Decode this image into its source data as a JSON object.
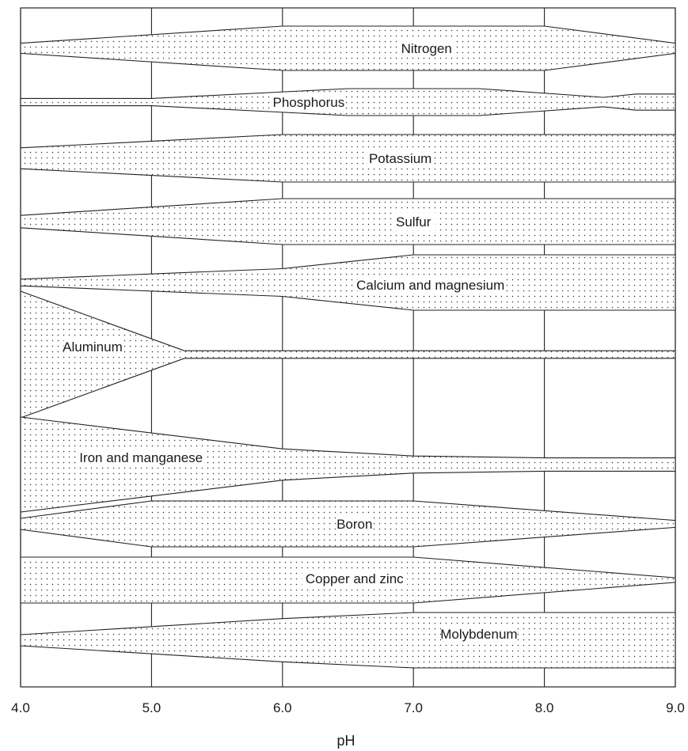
{
  "chart_data": {
    "type": "area",
    "xlabel": "pH",
    "xlim": [
      4.0,
      9.0
    ],
    "x_ticks": [
      "4.0",
      "5.0",
      "6.0",
      "7.0",
      "8.0",
      "9.0"
    ],
    "grid": true,
    "value_unit": "relative availability (band width, 0-1)",
    "series": [
      {
        "name": "Nitrogen",
        "label_x": 7.1,
        "points": [
          [
            4.0,
            0.23
          ],
          [
            6.0,
            1.0
          ],
          [
            8.0,
            1.0
          ],
          [
            9.0,
            0.23
          ]
        ]
      },
      {
        "name": "Phosphorus",
        "label_x": 6.2,
        "points": [
          [
            4.0,
            0.27
          ],
          [
            5.0,
            0.27
          ],
          [
            6.5,
            1.0
          ],
          [
            7.5,
            1.0
          ],
          [
            8.45,
            0.35
          ],
          [
            8.7,
            0.6
          ],
          [
            9.0,
            0.6
          ]
        ]
      },
      {
        "name": "Potassium",
        "label_x": 6.9,
        "points": [
          [
            4.0,
            0.44
          ],
          [
            6.0,
            1.0
          ],
          [
            9.0,
            1.0
          ]
        ]
      },
      {
        "name": "Sulfur",
        "label_x": 7.0,
        "points": [
          [
            4.0,
            0.27
          ],
          [
            6.0,
            1.0
          ],
          [
            9.0,
            1.0
          ]
        ]
      },
      {
        "name": "Calcium and magnesium",
        "label_x": 7.13,
        "points": [
          [
            4.0,
            0.12
          ],
          [
            6.0,
            0.5
          ],
          [
            7.0,
            1.0
          ],
          [
            9.0,
            1.0
          ]
        ]
      },
      {
        "name": "Aluminum",
        "label_x": 4.55,
        "points": [
          [
            4.0,
            1.0
          ],
          [
            5.25,
            0.06
          ],
          [
            9.0,
            0.06
          ]
        ]
      },
      {
        "name": "Iron and manganese",
        "label_x": 4.92,
        "points": [
          [
            4.0,
            1.0
          ],
          [
            6.0,
            0.33
          ],
          [
            7.0,
            0.18
          ],
          [
            8.0,
            0.14
          ],
          [
            9.0,
            0.14
          ]
        ]
      },
      {
        "name": "Boron",
        "label_x": 6.55,
        "points": [
          [
            4.0,
            0.24
          ],
          [
            5.0,
            1.0
          ],
          [
            7.0,
            1.0
          ],
          [
            9.0,
            0.15
          ]
        ]
      },
      {
        "name": "Copper and zinc",
        "label_x": 6.55,
        "points": [
          [
            4.0,
            1.0
          ],
          [
            7.0,
            1.0
          ],
          [
            9.0,
            0.1
          ]
        ]
      },
      {
        "name": "Molybdenum",
        "label_x": 7.5,
        "points": [
          [
            4.0,
            0.2
          ],
          [
            6.0,
            0.78
          ],
          [
            7.0,
            1.0
          ],
          [
            9.0,
            1.0
          ]
        ]
      }
    ]
  }
}
